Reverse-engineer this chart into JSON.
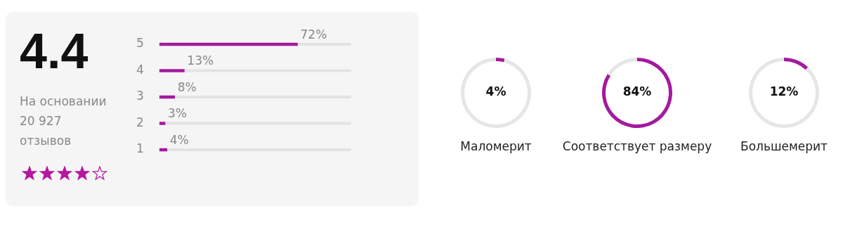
{
  "chart_data": [
    {
      "type": "other",
      "title": "4.4",
      "subtitle": "На основании 20 927 отзывов"
    },
    {
      "type": "bar",
      "orientation": "horizontal",
      "categories": [
        "5",
        "4",
        "3",
        "2",
        "1"
      ],
      "xlim": [
        0,
        100
      ],
      "tick_labels": "y",
      "series": [
        {
          "color": "#a31a9e",
          "values": [
            72,
            13,
            8,
            3,
            4
          ],
          "value_labels": [
            "72%",
            "13%",
            "8%",
            "3%",
            "4%"
          ]
        }
      ]
    },
    {
      "type": "donut",
      "title": "Маломерит",
      "categories": [
        null,
        null
      ],
      "values": [
        4,
        96
      ],
      "colors": [
        "#a31a9e",
        "#e6e6e6"
      ],
      "value_labels": [
        "4%",
        null
      ]
    },
    {
      "type": "donut",
      "title": "Соответствует размеру",
      "categories": [
        null,
        null
      ],
      "values": [
        84,
        16
      ],
      "colors": [
        "#a31a9e",
        "#e6e6e6"
      ],
      "value_labels": [
        "84%",
        null
      ]
    },
    {
      "type": "donut",
      "title": "Большемерит",
      "categories": [
        null,
        null
      ],
      "values": [
        12,
        88
      ],
      "colors": [
        "#a31a9e",
        "#e6e6e6"
      ],
      "value_labels": [
        "12%",
        null
      ]
    }
  ]
}
